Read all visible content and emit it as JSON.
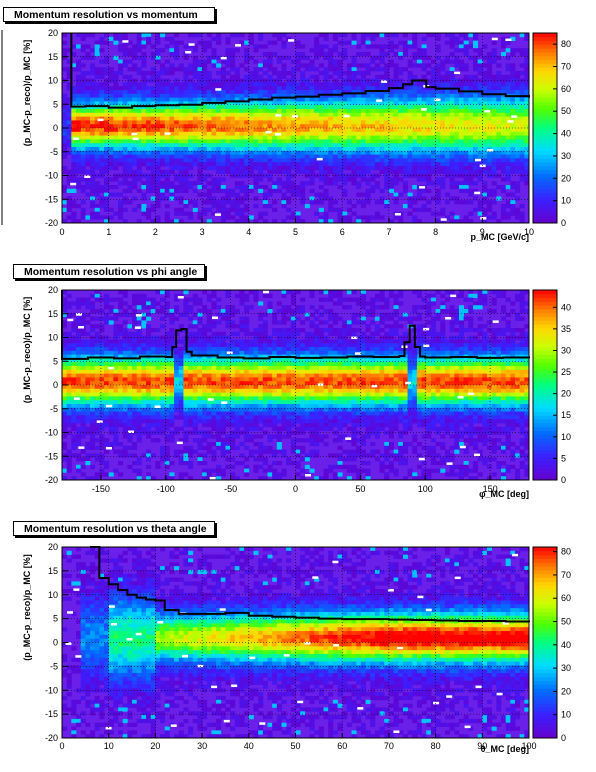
{
  "chart_data": [
    {
      "type": "heatmap",
      "title": "Momentum resolution vs momentum",
      "ylabel": "(p_MC-p_reco)/p_MC [%]",
      "xlabel": "p_MC [GeV/c]",
      "xlim": [
        0,
        10
      ],
      "ylim": [
        -20,
        20
      ],
      "x_ticks": [
        "0",
        "1",
        "2",
        "3",
        "4",
        "5",
        "6",
        "7",
        "8",
        "9",
        "10"
      ],
      "y_ticks": [
        "-20",
        "-15",
        "-10",
        "-5",
        "0",
        "5",
        "10",
        "15",
        "20"
      ],
      "z_ticks": [
        "0",
        "10",
        "20",
        "30",
        "40",
        "50",
        "60",
        "70",
        "80"
      ],
      "zlim": [
        0,
        85
      ],
      "grid": true,
      "profile_line": {
        "x": [
          0.2,
          0.5,
          1.0,
          1.5,
          2.0,
          2.5,
          3.0,
          3.5,
          4.0,
          4.5,
          5.0,
          5.5,
          6.0,
          6.5,
          7.0,
          7.3,
          7.5,
          7.8,
          8.0,
          8.5,
          9.0,
          9.5,
          10.0
        ],
        "y": [
          4.5,
          4.6,
          4.3,
          4.6,
          4.8,
          4.9,
          5.3,
          5.6,
          6.0,
          6.4,
          6.6,
          7.0,
          7.3,
          7.8,
          8.4,
          9.2,
          10.0,
          8.6,
          8.3,
          7.7,
          7.1,
          6.7,
          6.4
        ]
      },
      "peak": 0.5,
      "core_width": 3.2,
      "xmode": "momentum"
    },
    {
      "type": "heatmap",
      "title": "Momentum resolution vs phi angle",
      "ylabel": "(p_MC-p_reco)/p_MC [%]",
      "xlabel": "φ_MC [deg]",
      "xlim": [
        -180,
        180
      ],
      "ylim": [
        -20,
        20
      ],
      "x_ticks": [
        "-150",
        "-100",
        "-50",
        "0",
        "50",
        "100",
        "150"
      ],
      "y_ticks": [
        "-20",
        "-15",
        "-10",
        "-5",
        "0",
        "5",
        "10",
        "15",
        "20"
      ],
      "z_ticks": [
        "0",
        "5",
        "10",
        "15",
        "20",
        "25",
        "30",
        "35",
        "40"
      ],
      "zlim": [
        0,
        44
      ],
      "grid": true,
      "profile_line": {
        "x": [
          -180,
          -160,
          -140,
          -120,
          -100,
          -95,
          -92,
          -88,
          -84,
          -80,
          -60,
          -40,
          -20,
          0,
          20,
          40,
          60,
          80,
          84,
          88,
          92,
          96,
          100,
          120,
          140,
          160,
          180
        ],
        "y": [
          5.5,
          5.8,
          5.6,
          6.0,
          5.9,
          8.0,
          11.5,
          11.8,
          7.0,
          6.2,
          5.8,
          5.6,
          5.9,
          5.7,
          5.8,
          6.0,
          5.9,
          6.1,
          9.0,
          12.5,
          8.0,
          6.0,
          5.8,
          5.9,
          5.7,
          5.8,
          5.6
        ]
      },
      "peak": 0.8,
      "core_width": 3.4,
      "xmode": "phi"
    },
    {
      "type": "heatmap",
      "title": "Momentum resolution vs theta angle",
      "ylabel": "(p_MC-p_reco)/p_MC [%]",
      "xlabel": "θ_MC [deg]",
      "xlim": [
        0,
        100
      ],
      "ylim": [
        -20,
        20
      ],
      "x_ticks": [
        "0",
        "10",
        "20",
        "30",
        "40",
        "50",
        "60",
        "70",
        "80",
        "90",
        "100"
      ],
      "y_ticks": [
        "-20",
        "-15",
        "-10",
        "-5",
        "0",
        "5",
        "10",
        "15",
        "20"
      ],
      "z_ticks": [
        "0",
        "10",
        "20",
        "30",
        "40",
        "50",
        "60",
        "70",
        "80"
      ],
      "zlim": [
        0,
        82
      ],
      "grid": true,
      "profile_line": {
        "x": [
          6,
          8,
          10,
          12,
          14,
          16,
          18,
          20,
          22,
          25,
          30,
          35,
          40,
          45,
          50,
          55,
          60,
          65,
          70,
          75,
          80,
          85,
          90,
          95,
          100
        ],
        "y": [
          20,
          13.5,
          12.2,
          11.0,
          10.0,
          9.4,
          9.0,
          8.8,
          6.8,
          6.0,
          6.0,
          6.2,
          5.6,
          5.4,
          5.2,
          5.0,
          4.9,
          4.9,
          4.8,
          4.7,
          4.6,
          4.5,
          4.5,
          4.4,
          4.3
        ]
      },
      "peak": 1.0,
      "core_width": 3.3,
      "xmode": "theta"
    }
  ]
}
